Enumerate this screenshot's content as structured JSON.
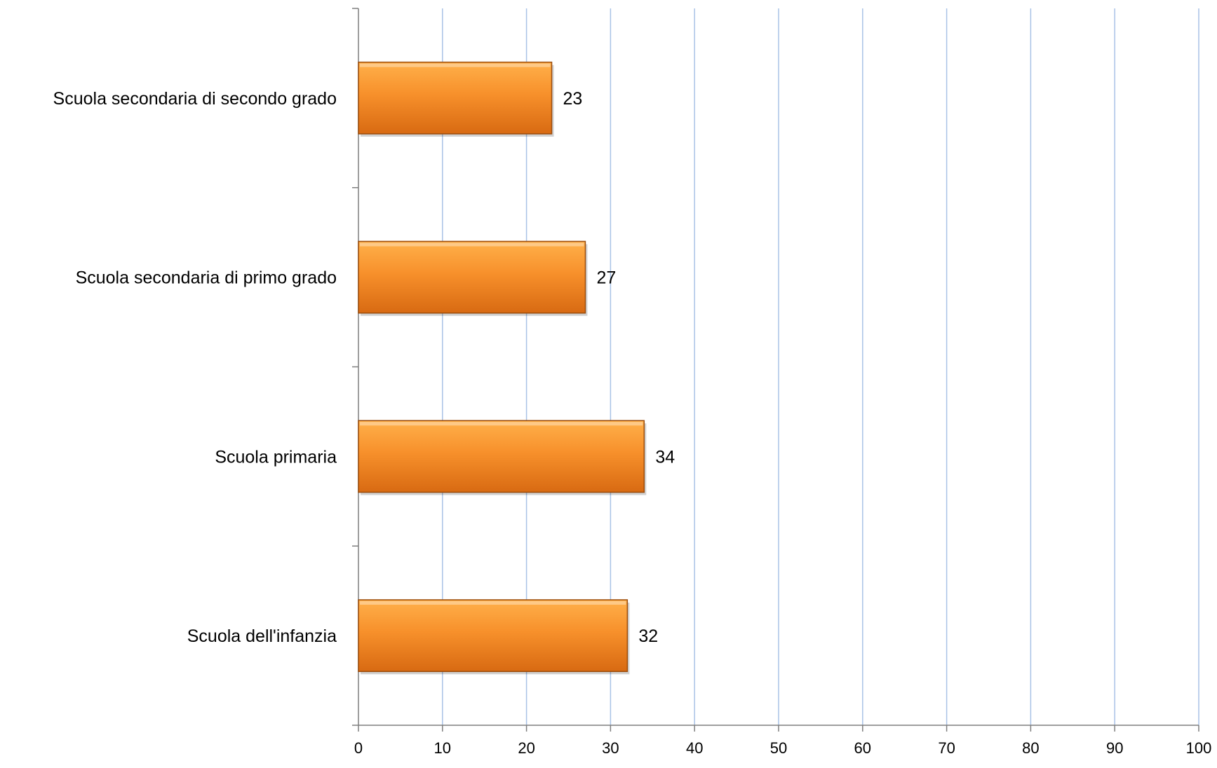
{
  "chart_data": {
    "type": "bar",
    "orientation": "horizontal",
    "categories": [
      "Scuola secondaria di secondo grado",
      "Scuola secondaria di primo grado",
      "Scuola primaria",
      "Scuola dell'infanzia"
    ],
    "values": [
      23,
      27,
      34,
      32
    ],
    "data_labels": [
      "23",
      "27",
      "34",
      "32"
    ],
    "xlim": [
      0,
      100
    ],
    "x_ticks": [
      0,
      10,
      20,
      30,
      40,
      50,
      60,
      70,
      80,
      90,
      100
    ],
    "x_tick_labels": [
      "0",
      "10",
      "20",
      "30",
      "40",
      "50",
      "60",
      "70",
      "80",
      "90",
      "100"
    ],
    "title": "",
    "xlabel": "",
    "ylabel": "",
    "grid": "vertical",
    "legend": "none"
  },
  "colors": {
    "bar_top": "#ffb04a",
    "bar_mid": "#f7902b",
    "bar_bottom": "#d86a12",
    "bar_edge": "#9c4d0c",
    "gridline": "#a9c2e6",
    "axis": "#7f7f7f"
  }
}
